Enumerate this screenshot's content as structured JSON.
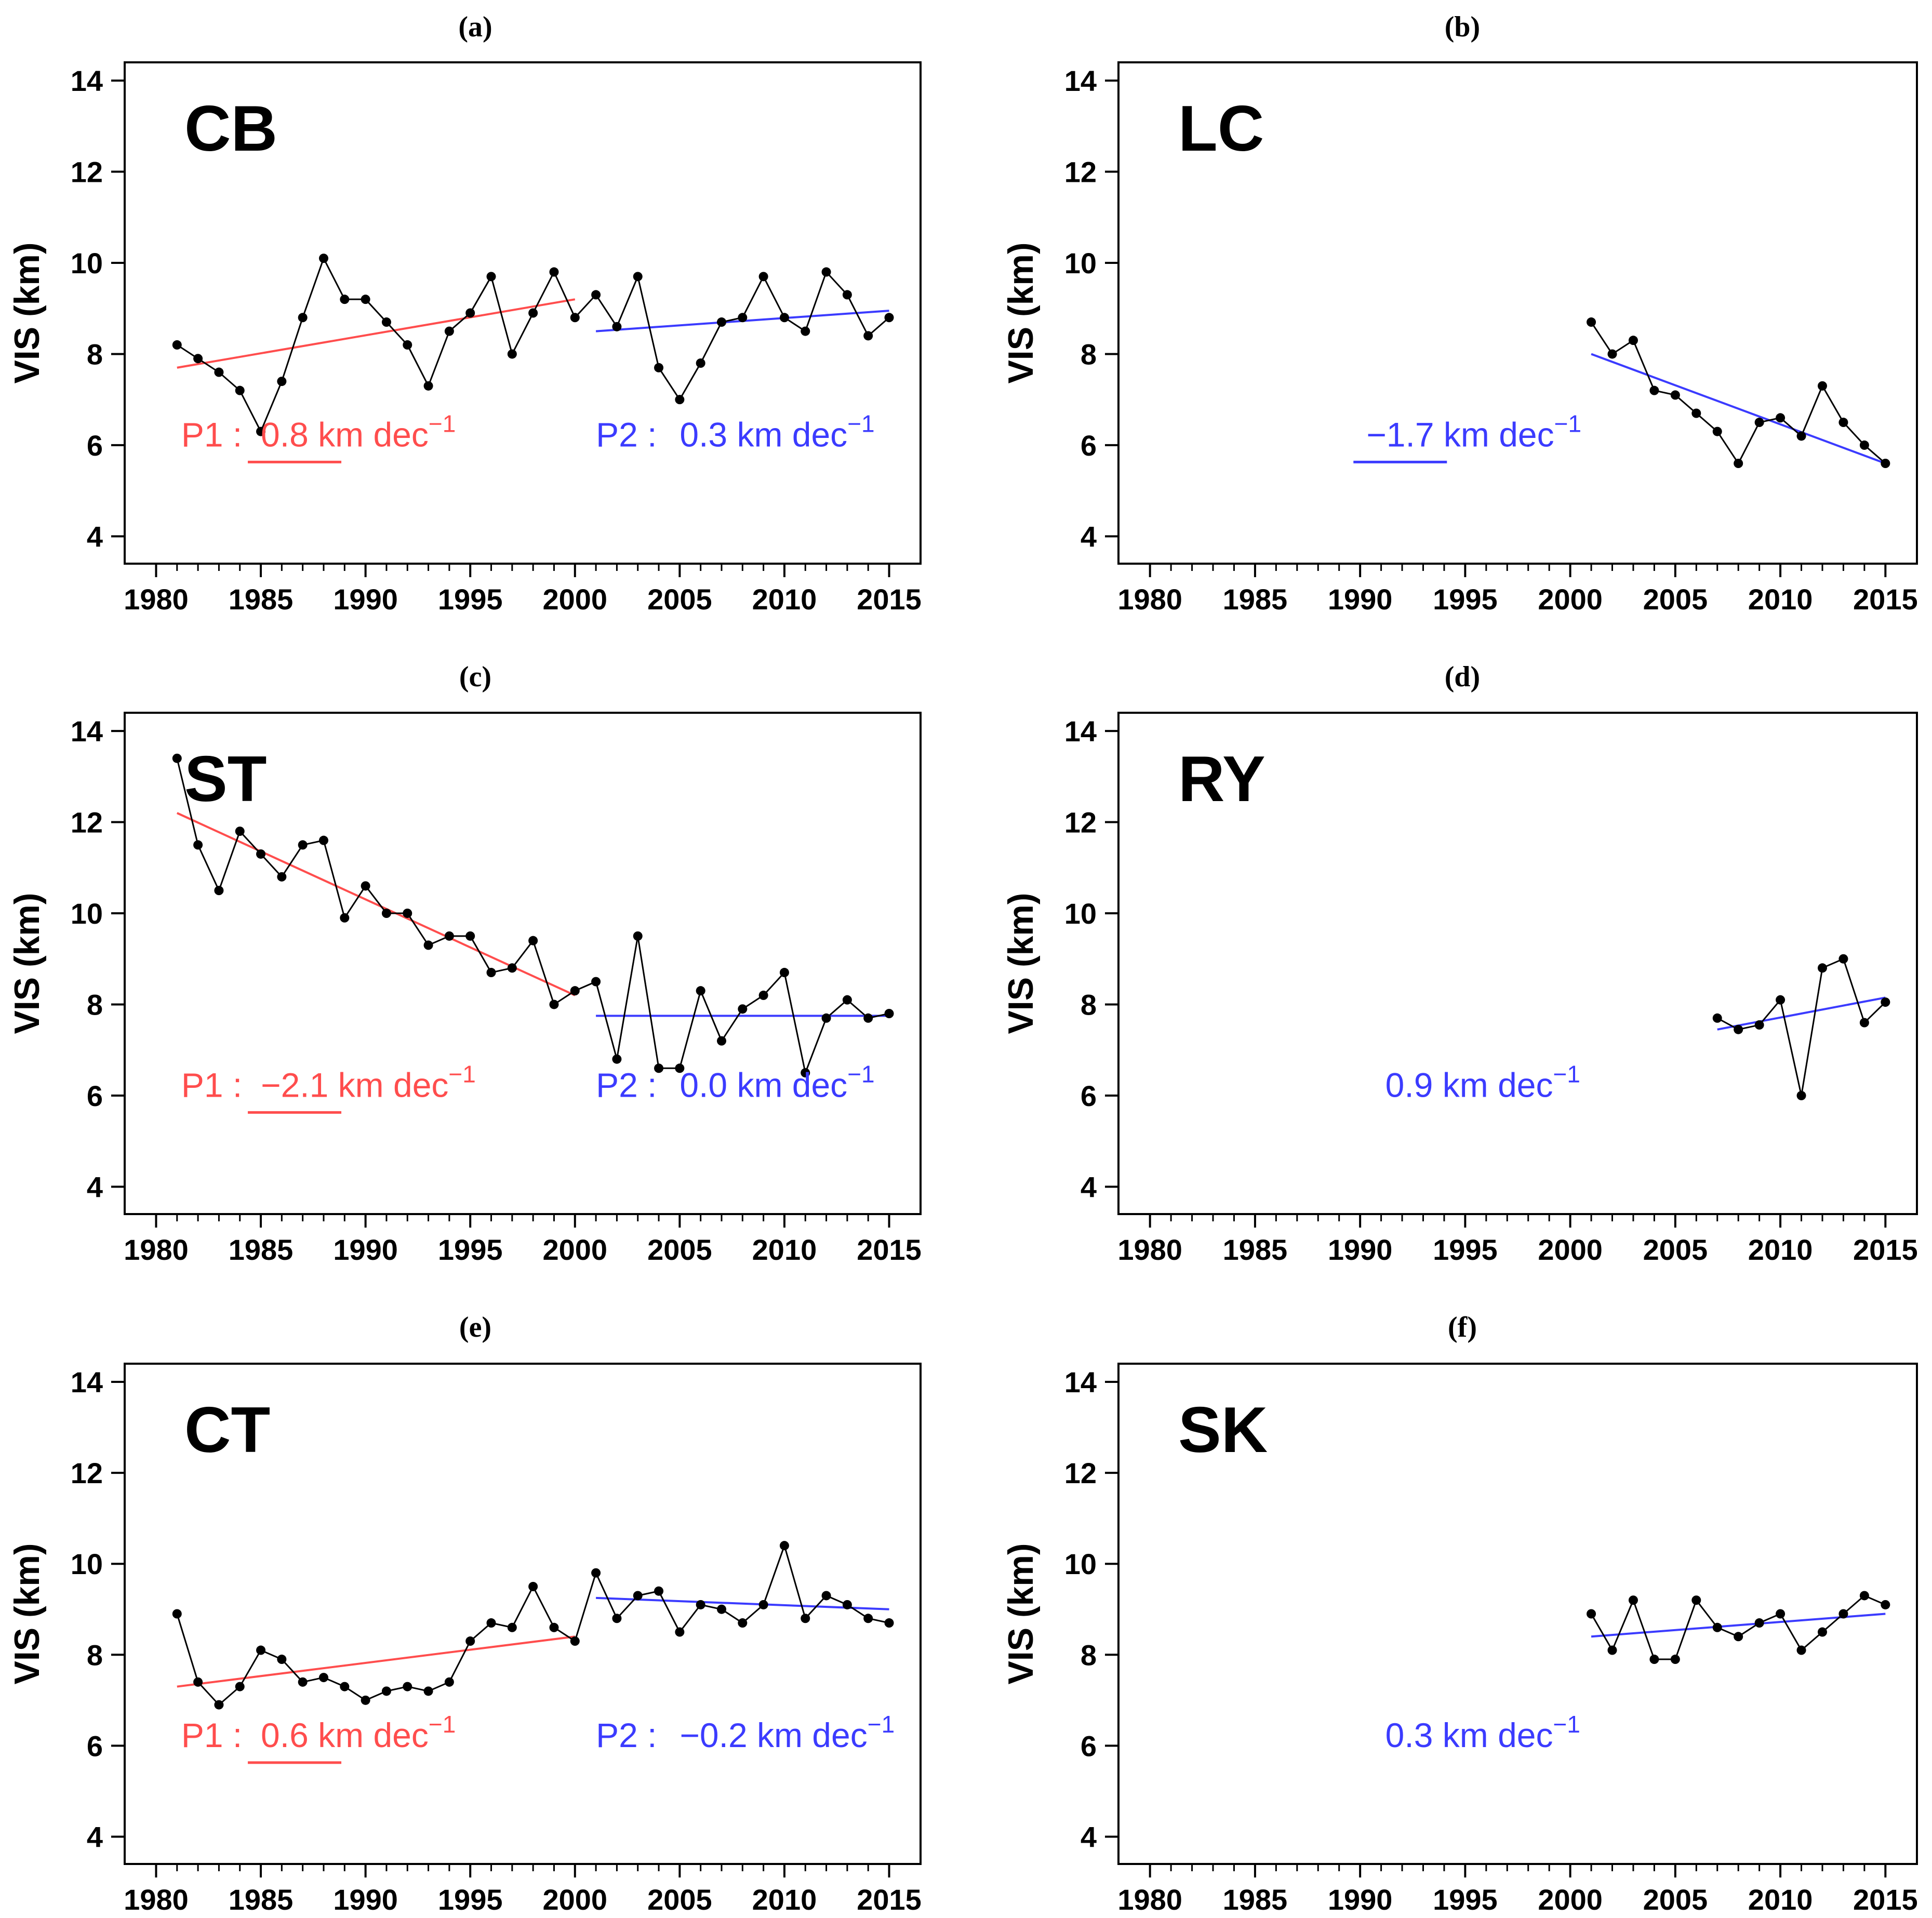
{
  "figure": {
    "description_free": true,
    "y_axis_label": "VIS (km)",
    "colors": {
      "p1": "#ff4d4d",
      "p2": "#3b3bff",
      "data": "#000000"
    }
  },
  "chart_data": [
    {
      "panel_label": "(a)",
      "type": "line",
      "station": "CB",
      "xlabel": "",
      "ylabel": "VIS (km)",
      "xlim": [
        1978.5,
        2016.5
      ],
      "ylim": [
        3.4,
        14.4
      ],
      "x_ticks": [
        1980,
        1985,
        1990,
        1995,
        2000,
        2005,
        2010,
        2015
      ],
      "y_ticks": [
        4,
        6,
        8,
        10,
        12,
        14
      ],
      "series": [
        {
          "name": "VIS",
          "x": [
            1981,
            1982,
            1983,
            1984,
            1985,
            1986,
            1987,
            1988,
            1989,
            1990,
            1991,
            1992,
            1993,
            1994,
            1995,
            1996,
            1997,
            1998,
            1999,
            2000,
            2001,
            2002,
            2003,
            2004,
            2005,
            2006,
            2007,
            2008,
            2009,
            2010,
            2011,
            2012,
            2013,
            2014,
            2015
          ],
          "values": [
            8.2,
            7.9,
            7.6,
            7.2,
            6.3,
            7.4,
            8.8,
            10.1,
            9.2,
            9.2,
            8.7,
            8.2,
            7.3,
            8.5,
            8.9,
            9.7,
            8.0,
            8.9,
            9.8,
            8.8,
            9.3,
            8.6,
            9.7,
            7.7,
            7.0,
            7.8,
            8.7,
            8.8,
            9.7,
            8.8,
            8.5,
            9.8,
            9.3,
            8.4,
            8.8
          ]
        }
      ],
      "trends": [
        {
          "name": "P1",
          "x": [
            1981,
            2000
          ],
          "y": [
            7.7,
            9.2
          ],
          "color": "#ff4d4d",
          "label": "P1 :",
          "value": "0.8",
          "unit": "km dec",
          "exp": "−1",
          "underline": true,
          "label_x": 1981.2,
          "value_x": 1985.0,
          "text_y": 6.2
        },
        {
          "name": "P2",
          "x": [
            2001,
            2015
          ],
          "y": [
            8.5,
            8.95
          ],
          "color": "#3b3bff",
          "label": "P2 :",
          "value": "0.3",
          "unit": "km dec",
          "exp": "−1",
          "underline": false,
          "label_x": 2001.0,
          "value_x": 2005.0,
          "text_y": 6.2
        }
      ]
    },
    {
      "panel_label": "(b)",
      "type": "line",
      "station": "LC",
      "xlabel": "",
      "ylabel": "VIS (km)",
      "xlim": [
        1978.5,
        2016.5
      ],
      "ylim": [
        3.4,
        14.4
      ],
      "x_ticks": [
        1980,
        1985,
        1990,
        1995,
        2000,
        2005,
        2010,
        2015
      ],
      "y_ticks": [
        4,
        6,
        8,
        10,
        12,
        14
      ],
      "series": [
        {
          "name": "VIS",
          "x": [
            2001,
            2002,
            2003,
            2004,
            2005,
            2006,
            2007,
            2008,
            2009,
            2010,
            2011,
            2012,
            2013,
            2014,
            2015
          ],
          "values": [
            8.7,
            8.0,
            8.3,
            7.2,
            7.1,
            6.7,
            6.3,
            5.6,
            6.5,
            6.6,
            6.2,
            7.3,
            6.5,
            6.0,
            5.6
          ]
        }
      ],
      "trends": [
        {
          "name": "P",
          "x": [
            2001,
            2015
          ],
          "y": [
            8.0,
            5.6
          ],
          "color": "#3b3bff",
          "label": "",
          "value": "−1.7",
          "unit": "km dec",
          "exp": "−1",
          "underline": true,
          "label_x": 1990.0,
          "value_x": 1990.3,
          "text_y": 6.2
        }
      ]
    },
    {
      "panel_label": "(c)",
      "type": "line",
      "station": "ST",
      "xlabel": "",
      "ylabel": "VIS (km)",
      "xlim": [
        1978.5,
        2016.5
      ],
      "ylim": [
        3.4,
        14.4
      ],
      "x_ticks": [
        1980,
        1985,
        1990,
        1995,
        2000,
        2005,
        2010,
        2015
      ],
      "y_ticks": [
        4,
        6,
        8,
        10,
        12,
        14
      ],
      "series": [
        {
          "name": "VIS",
          "x": [
            1981,
            1982,
            1983,
            1984,
            1985,
            1986,
            1987,
            1988,
            1989,
            1990,
            1991,
            1992,
            1993,
            1994,
            1995,
            1996,
            1997,
            1998,
            1999,
            2000,
            2001,
            2002,
            2003,
            2004,
            2005,
            2006,
            2007,
            2008,
            2009,
            2010,
            2011,
            2012,
            2013,
            2014,
            2015
          ],
          "values": [
            13.4,
            11.5,
            10.5,
            11.8,
            11.3,
            10.8,
            11.5,
            11.6,
            9.9,
            10.6,
            10.0,
            10.0,
            9.3,
            9.5,
            9.5,
            8.7,
            8.8,
            9.4,
            8.0,
            8.3,
            8.5,
            6.8,
            9.5,
            6.6,
            6.6,
            8.3,
            7.2,
            7.9,
            8.2,
            8.7,
            6.5,
            7.7,
            8.1,
            7.7,
            7.8
          ]
        }
      ],
      "trends": [
        {
          "name": "P1",
          "x": [
            1981,
            2000
          ],
          "y": [
            12.2,
            8.2
          ],
          "color": "#ff4d4d",
          "label": "P1 :",
          "value": "−2.1",
          "unit": "km dec",
          "exp": "−1",
          "underline": true,
          "label_x": 1981.2,
          "value_x": 1985.0,
          "text_y": 6.2
        },
        {
          "name": "P2",
          "x": [
            2001,
            2015
          ],
          "y": [
            7.75,
            7.75
          ],
          "color": "#3b3bff",
          "label": "P2 :",
          "value": "0.0",
          "unit": "km dec",
          "exp": "−1",
          "underline": false,
          "label_x": 2001.0,
          "value_x": 2005.0,
          "text_y": 6.2
        }
      ]
    },
    {
      "panel_label": "(d)",
      "type": "line",
      "station": "RY",
      "xlabel": "",
      "ylabel": "VIS (km)",
      "xlim": [
        1978.5,
        2016.5
      ],
      "ylim": [
        3.4,
        14.4
      ],
      "x_ticks": [
        1980,
        1985,
        1990,
        1995,
        2000,
        2005,
        2010,
        2015
      ],
      "y_ticks": [
        4,
        6,
        8,
        10,
        12,
        14
      ],
      "series": [
        {
          "name": "VIS",
          "x": [
            2007,
            2008,
            2009,
            2010,
            2011,
            2012,
            2013,
            2014,
            2015
          ],
          "values": [
            7.7,
            7.45,
            7.55,
            8.1,
            6.0,
            8.8,
            9.0,
            7.6,
            8.05
          ]
        }
      ],
      "trends": [
        {
          "name": "P",
          "x": [
            2007,
            2015
          ],
          "y": [
            7.45,
            8.15
          ],
          "color": "#3b3bff",
          "label": "",
          "value": "0.9",
          "unit": "km dec",
          "exp": "−1",
          "underline": false,
          "label_x": 1991.2,
          "value_x": 1991.2,
          "text_y": 6.2
        }
      ]
    },
    {
      "panel_label": "(e)",
      "type": "line",
      "station": "CT",
      "xlabel": "",
      "ylabel": "VIS (km)",
      "xlim": [
        1978.5,
        2016.5
      ],
      "ylim": [
        3.4,
        14.4
      ],
      "x_ticks": [
        1980,
        1985,
        1990,
        1995,
        2000,
        2005,
        2010,
        2015
      ],
      "y_ticks": [
        4,
        6,
        8,
        10,
        12,
        14
      ],
      "series": [
        {
          "name": "VIS",
          "x": [
            1981,
            1982,
            1983,
            1984,
            1985,
            1986,
            1987,
            1988,
            1989,
            1990,
            1991,
            1992,
            1993,
            1994,
            1995,
            1996,
            1997,
            1998,
            1999,
            2000,
            2001,
            2002,
            2003,
            2004,
            2005,
            2006,
            2007,
            2008,
            2009,
            2010,
            2011,
            2012,
            2013,
            2014,
            2015
          ],
          "values": [
            8.9,
            7.4,
            6.9,
            7.3,
            8.1,
            7.9,
            7.4,
            7.5,
            7.3,
            7.0,
            7.2,
            7.3,
            7.2,
            7.4,
            8.3,
            8.7,
            8.6,
            9.5,
            8.6,
            8.3,
            9.8,
            8.8,
            9.3,
            9.4,
            8.5,
            9.1,
            9.0,
            8.7,
            9.1,
            10.4,
            8.8,
            9.3,
            9.1,
            8.8,
            8.7
          ]
        }
      ],
      "trends": [
        {
          "name": "P1",
          "x": [
            1981,
            2000
          ],
          "y": [
            7.3,
            8.4
          ],
          "color": "#ff4d4d",
          "label": "P1 :",
          "value": "0.6",
          "unit": "km dec",
          "exp": "−1",
          "underline": true,
          "label_x": 1981.2,
          "value_x": 1985.0,
          "text_y": 6.2
        },
        {
          "name": "P2",
          "x": [
            2001,
            2015
          ],
          "y": [
            9.25,
            9.0
          ],
          "color": "#3b3bff",
          "label": "P2 :",
          "value": "−0.2",
          "unit": "km dec",
          "exp": "−1",
          "underline": false,
          "label_x": 2001.0,
          "value_x": 2005.0,
          "text_y": 6.2
        }
      ]
    },
    {
      "panel_label": "(f)",
      "type": "line",
      "station": "SK",
      "xlabel": "",
      "ylabel": "VIS (km)",
      "xlim": [
        1978.5,
        2016.5
      ],
      "ylim": [
        3.4,
        14.4
      ],
      "x_ticks": [
        1980,
        1985,
        1990,
        1995,
        2000,
        2005,
        2010,
        2015
      ],
      "y_ticks": [
        4,
        6,
        8,
        10,
        12,
        14
      ],
      "series": [
        {
          "name": "VIS",
          "x": [
            2001,
            2002,
            2003,
            2004,
            2005,
            2006,
            2007,
            2008,
            2009,
            2010,
            2011,
            2012,
            2013,
            2014,
            2015
          ],
          "values": [
            8.9,
            8.1,
            9.2,
            7.9,
            7.9,
            9.2,
            8.6,
            8.4,
            8.7,
            8.9,
            8.1,
            8.5,
            8.9,
            9.3,
            9.1
          ]
        }
      ],
      "trends": [
        {
          "name": "P",
          "x": [
            2001,
            2015
          ],
          "y": [
            8.4,
            8.9
          ],
          "color": "#3b3bff",
          "label": "",
          "value": "0.3",
          "unit": "km dec",
          "exp": "−1",
          "underline": false,
          "label_x": 1991.2,
          "value_x": 1991.2,
          "text_y": 6.2
        }
      ]
    }
  ]
}
